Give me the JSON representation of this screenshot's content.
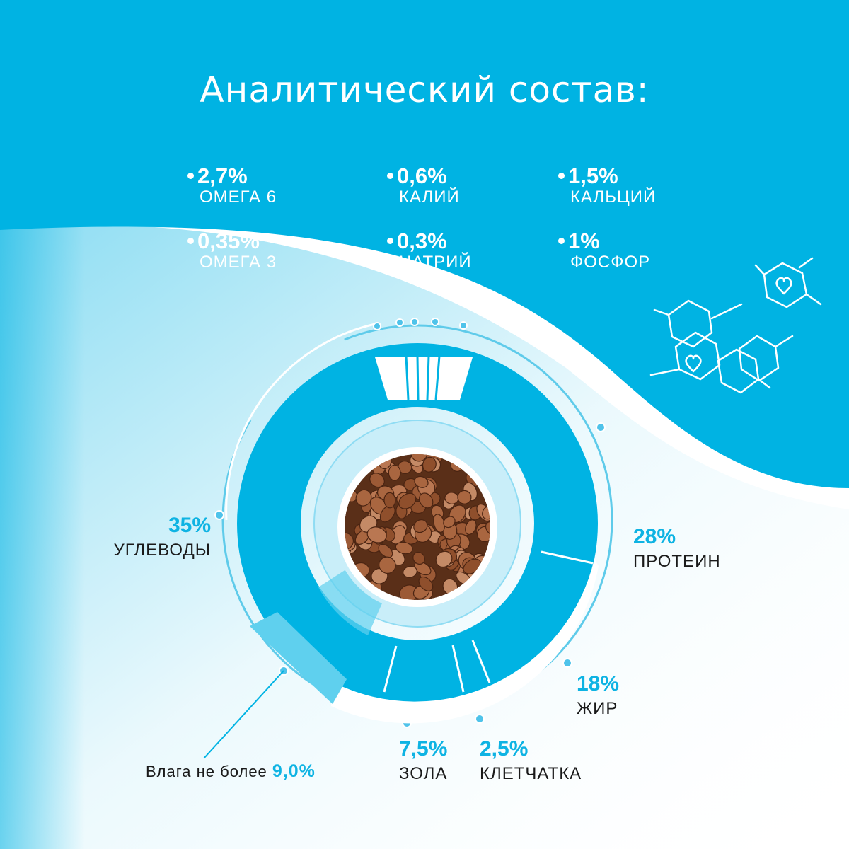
{
  "title": "Аналитический состав:",
  "colors": {
    "brand_blue": "#00b3e3",
    "light_blue": "#5fd0ee",
    "text_dark": "#1a1a1a",
    "value_blue": "#0eb3e3"
  },
  "nutrients": [
    {
      "value": "2,7%",
      "label": "ОМЕГА 6"
    },
    {
      "value": "0,6%",
      "label": "КАЛИЙ"
    },
    {
      "value": "1,5%",
      "label": "КАЛЬЦИЙ"
    },
    {
      "value": "0,35%",
      "label": "ОМЕГА 3"
    },
    {
      "value": "0,3%",
      "label": "НАТРИЙ"
    },
    {
      "value": "1%",
      "label": "ФОСФОР"
    }
  ],
  "components": {
    "carbs": {
      "value": "35%",
      "label": "УГЛЕВОДЫ"
    },
    "protein": {
      "value": "28%",
      "label": "ПРОТЕИН"
    },
    "fat": {
      "value": "18%",
      "label": "ЖИР"
    },
    "ash": {
      "value": "7,5%",
      "label": "ЗОЛА"
    },
    "fiber": {
      "value": "2,5%",
      "label": "КЛЕТЧАТКА"
    }
  },
  "moisture": {
    "label": "Влага не более",
    "value": "9,0%"
  },
  "icons": {
    "center_image": "kibble-food-image",
    "decoration": "molecule-hexagon-hearts-icon"
  }
}
